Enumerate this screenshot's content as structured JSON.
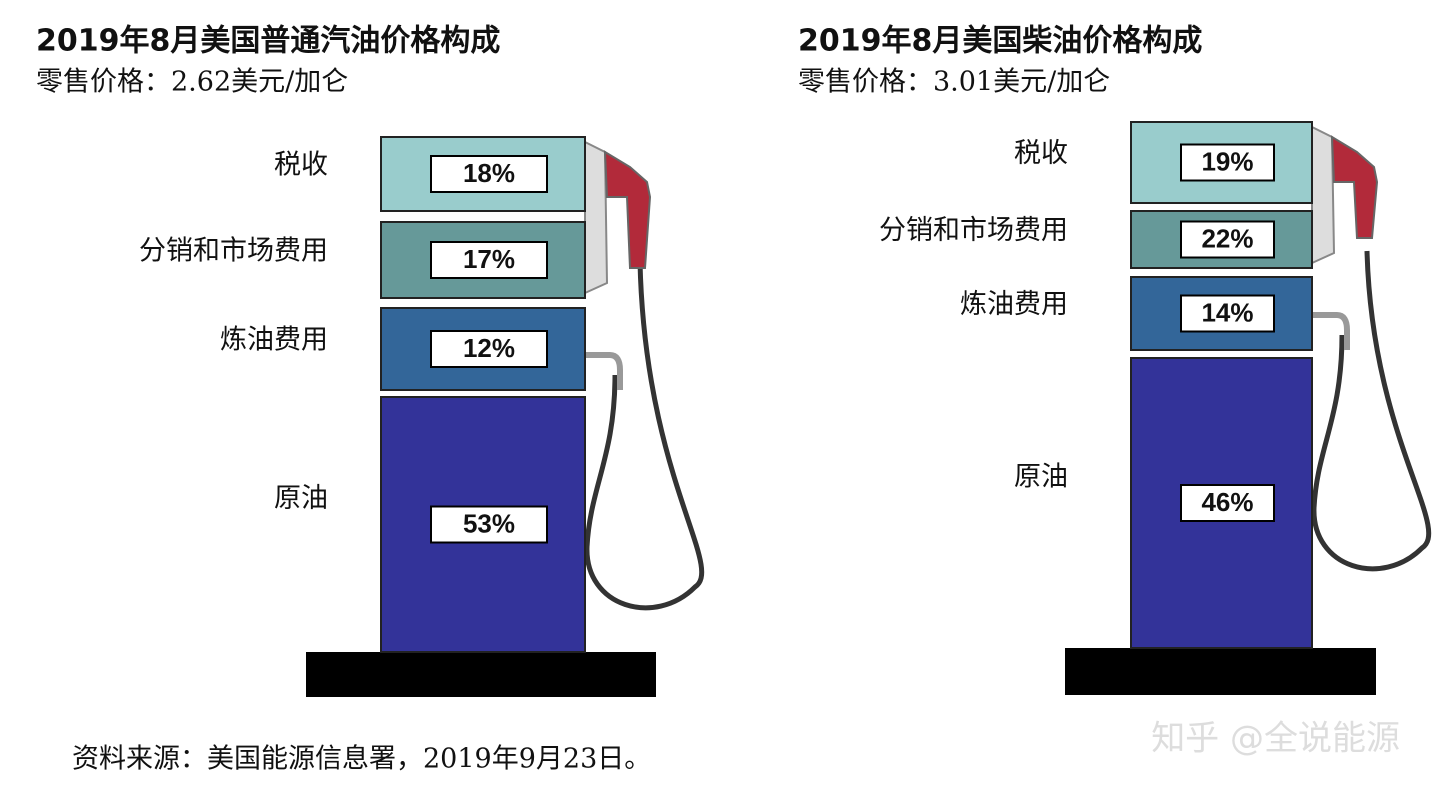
{
  "pumps": [
    {
      "title": "2019年8月美国普通汽油价格构成",
      "subtitle": "零售价格：2.62美元/加仑",
      "segments": [
        {
          "label": "税收",
          "value": "18%"
        },
        {
          "label": "分销和市场费用",
          "value": "17%"
        },
        {
          "label": "炼油费用",
          "value": "12%"
        },
        {
          "label": "原油",
          "value": "53%"
        }
      ]
    },
    {
      "title": "2019年8月美国柴油价格构成",
      "subtitle": "零售价格：3.01美元/加仑",
      "segments": [
        {
          "label": "税收",
          "value": "19%"
        },
        {
          "label": "分销和市场费用",
          "value": "22%"
        },
        {
          "label": "炼油费用",
          "value": "14%"
        },
        {
          "label": "原油",
          "value": "46%"
        }
      ]
    }
  ],
  "source": "资料来源：美国能源信息署，2019年9月23日。",
  "watermark": "知乎 @全说能源"
}
